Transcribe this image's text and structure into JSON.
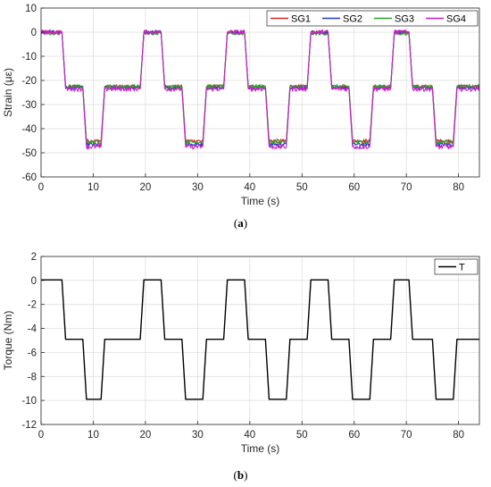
{
  "chart_data": [
    {
      "type": "line",
      "caption": "(a)",
      "xlabel": "Time (s)",
      "ylabel": "Strain (με)",
      "xlim": [
        0,
        84
      ],
      "ylim": [
        -60,
        10
      ],
      "xticks": [
        0,
        10,
        20,
        30,
        40,
        50,
        60,
        70,
        80
      ],
      "yticks": [
        10,
        0,
        -10,
        -20,
        -30,
        -40,
        -50,
        -60
      ],
      "grid": true,
      "legend_position": "top-right",
      "legend_layout": "horizontal",
      "series": [
        {
          "name": "SG1",
          "color": "#d62728",
          "noise": 0.7,
          "x": [
            0,
            4,
            4.7,
            8,
            8.7,
            11.5,
            12.2,
            19,
            19.7,
            23,
            23.7,
            27,
            27.7,
            31,
            31.7,
            35,
            35.7,
            39,
            39.7,
            43,
            43.7,
            47,
            47.7,
            51,
            51.7,
            55,
            55.7,
            59,
            59.7,
            63,
            63.7,
            67,
            67.7,
            70.5,
            71.2,
            75,
            75.7,
            79,
            79.7,
            84
          ],
          "y": [
            0,
            0,
            -22.5,
            -22.5,
            -45,
            -45,
            -22.5,
            -22.5,
            0,
            0,
            -22.5,
            -22.5,
            -45,
            -45,
            -22.5,
            -22.5,
            0,
            0,
            -22.5,
            -22.5,
            -45,
            -45,
            -22.5,
            -22.5,
            0,
            0,
            -22.5,
            -22.5,
            -45,
            -45,
            -22.5,
            -22.5,
            0,
            0,
            -22.5,
            -22.5,
            -45,
            -45,
            -22.5,
            -22.5
          ]
        },
        {
          "name": "SG2",
          "color": "#1f3fbf",
          "noise": 0.7,
          "x": [
            0,
            4,
            4.7,
            8,
            8.7,
            11.5,
            12.2,
            19,
            19.7,
            23,
            23.7,
            27,
            27.7,
            31,
            31.7,
            35,
            35.7,
            39,
            39.7,
            43,
            43.7,
            47,
            47.7,
            51,
            51.7,
            55,
            55.7,
            59,
            59.7,
            63,
            63.7,
            67,
            67.7,
            70.5,
            71.2,
            75,
            75.7,
            79,
            79.7,
            84
          ],
          "y": [
            0,
            0,
            -23,
            -23,
            -46.5,
            -46.5,
            -23,
            -23,
            0,
            0,
            -23,
            -23,
            -46.5,
            -46.5,
            -23,
            -23,
            0,
            0,
            -23,
            -23,
            -46.5,
            -46.5,
            -23,
            -23,
            0,
            0,
            -23,
            -23,
            -46.5,
            -46.5,
            -23,
            -23,
            0,
            0,
            -23,
            -23,
            -46.5,
            -46.5,
            -23,
            -23
          ]
        },
        {
          "name": "SG3",
          "color": "#2ca02c",
          "noise": 0.8,
          "x": [
            0,
            4,
            4.7,
            8,
            8.7,
            11.5,
            12.2,
            19,
            19.7,
            23,
            23.7,
            27,
            27.7,
            31,
            31.7,
            35,
            35.7,
            39,
            39.7,
            43,
            43.7,
            47,
            47.7,
            51,
            51.7,
            55,
            55.7,
            59,
            59.7,
            63,
            63.7,
            67,
            67.7,
            70.5,
            71.2,
            75,
            75.7,
            79,
            79.7,
            84
          ],
          "y": [
            -0.5,
            -0.5,
            -22.5,
            -22.5,
            -45.5,
            -45.5,
            -22.5,
            -22.5,
            -0.5,
            -0.5,
            -22.5,
            -22.5,
            -45.5,
            -45.5,
            -22.5,
            -22.5,
            -0.5,
            -0.5,
            -22.5,
            -22.5,
            -45.5,
            -45.5,
            -22.5,
            -22.5,
            -0.5,
            -0.5,
            -22.5,
            -22.5,
            -45.5,
            -45.5,
            -22.5,
            -22.5,
            -0.5,
            -0.5,
            -22.5,
            -22.5,
            -45.5,
            -45.5,
            -22.5,
            -22.5
          ]
        },
        {
          "name": "SG4",
          "color": "#c81fc8",
          "noise": 1.0,
          "x": [
            0,
            4,
            4.7,
            8,
            8.7,
            11.5,
            12.2,
            19,
            19.7,
            23,
            23.7,
            27,
            27.7,
            31,
            31.7,
            35,
            35.7,
            39,
            39.7,
            43,
            43.7,
            47,
            47.7,
            51,
            51.7,
            55,
            55.7,
            59,
            59.7,
            63,
            63.7,
            67,
            67.7,
            70.5,
            71.2,
            75,
            75.7,
            79,
            79.7,
            84
          ],
          "y": [
            0,
            0,
            -23.5,
            -23.5,
            -47.5,
            -47.5,
            -23.5,
            -23.5,
            0,
            0,
            -23.5,
            -23.5,
            -47.5,
            -47.5,
            -23.5,
            -23.5,
            0,
            0,
            -23.5,
            -23.5,
            -47.5,
            -47.5,
            -23.5,
            -23.5,
            0,
            0,
            -23.5,
            -23.5,
            -47.5,
            -47.5,
            -23.5,
            -23.5,
            0,
            0,
            -23.5,
            -23.5,
            -47.5,
            -47.5,
            -23.5,
            -23.5
          ]
        }
      ]
    },
    {
      "type": "line",
      "caption": "(b)",
      "xlabel": "Time (s)",
      "ylabel": "Torque (Nm)",
      "xlim": [
        0,
        84
      ],
      "ylim": [
        -12,
        2
      ],
      "xticks": [
        0,
        10,
        20,
        30,
        40,
        50,
        60,
        70,
        80
      ],
      "yticks": [
        2,
        0,
        -2,
        -4,
        -6,
        -8,
        -10,
        -12
      ],
      "grid": true,
      "legend_position": "top-right",
      "legend_layout": "horizontal",
      "series": [
        {
          "name": "T",
          "color": "#000000",
          "noise": 0,
          "x": [
            0,
            4,
            4.7,
            8,
            8.7,
            11.5,
            12.2,
            19,
            19.7,
            23,
            23.7,
            27,
            27.7,
            31,
            31.7,
            35,
            35.7,
            39,
            39.7,
            43,
            43.7,
            47,
            47.7,
            51,
            51.7,
            55,
            55.7,
            59,
            59.7,
            63,
            63.7,
            67,
            67.7,
            70.5,
            71.2,
            75,
            75.7,
            79,
            79.7,
            84
          ],
          "y": [
            0.05,
            0.05,
            -4.9,
            -4.9,
            -9.9,
            -9.9,
            -4.9,
            -4.9,
            0.05,
            0.05,
            -4.9,
            -4.9,
            -9.9,
            -9.9,
            -4.9,
            -4.9,
            0.05,
            0.05,
            -4.9,
            -4.9,
            -9.9,
            -9.9,
            -4.9,
            -4.9,
            0.05,
            0.05,
            -4.9,
            -4.9,
            -9.9,
            -9.9,
            -4.9,
            -4.9,
            0.05,
            0.05,
            -4.9,
            -4.9,
            -9.9,
            -9.9,
            -4.9,
            -4.9
          ]
        }
      ]
    }
  ]
}
